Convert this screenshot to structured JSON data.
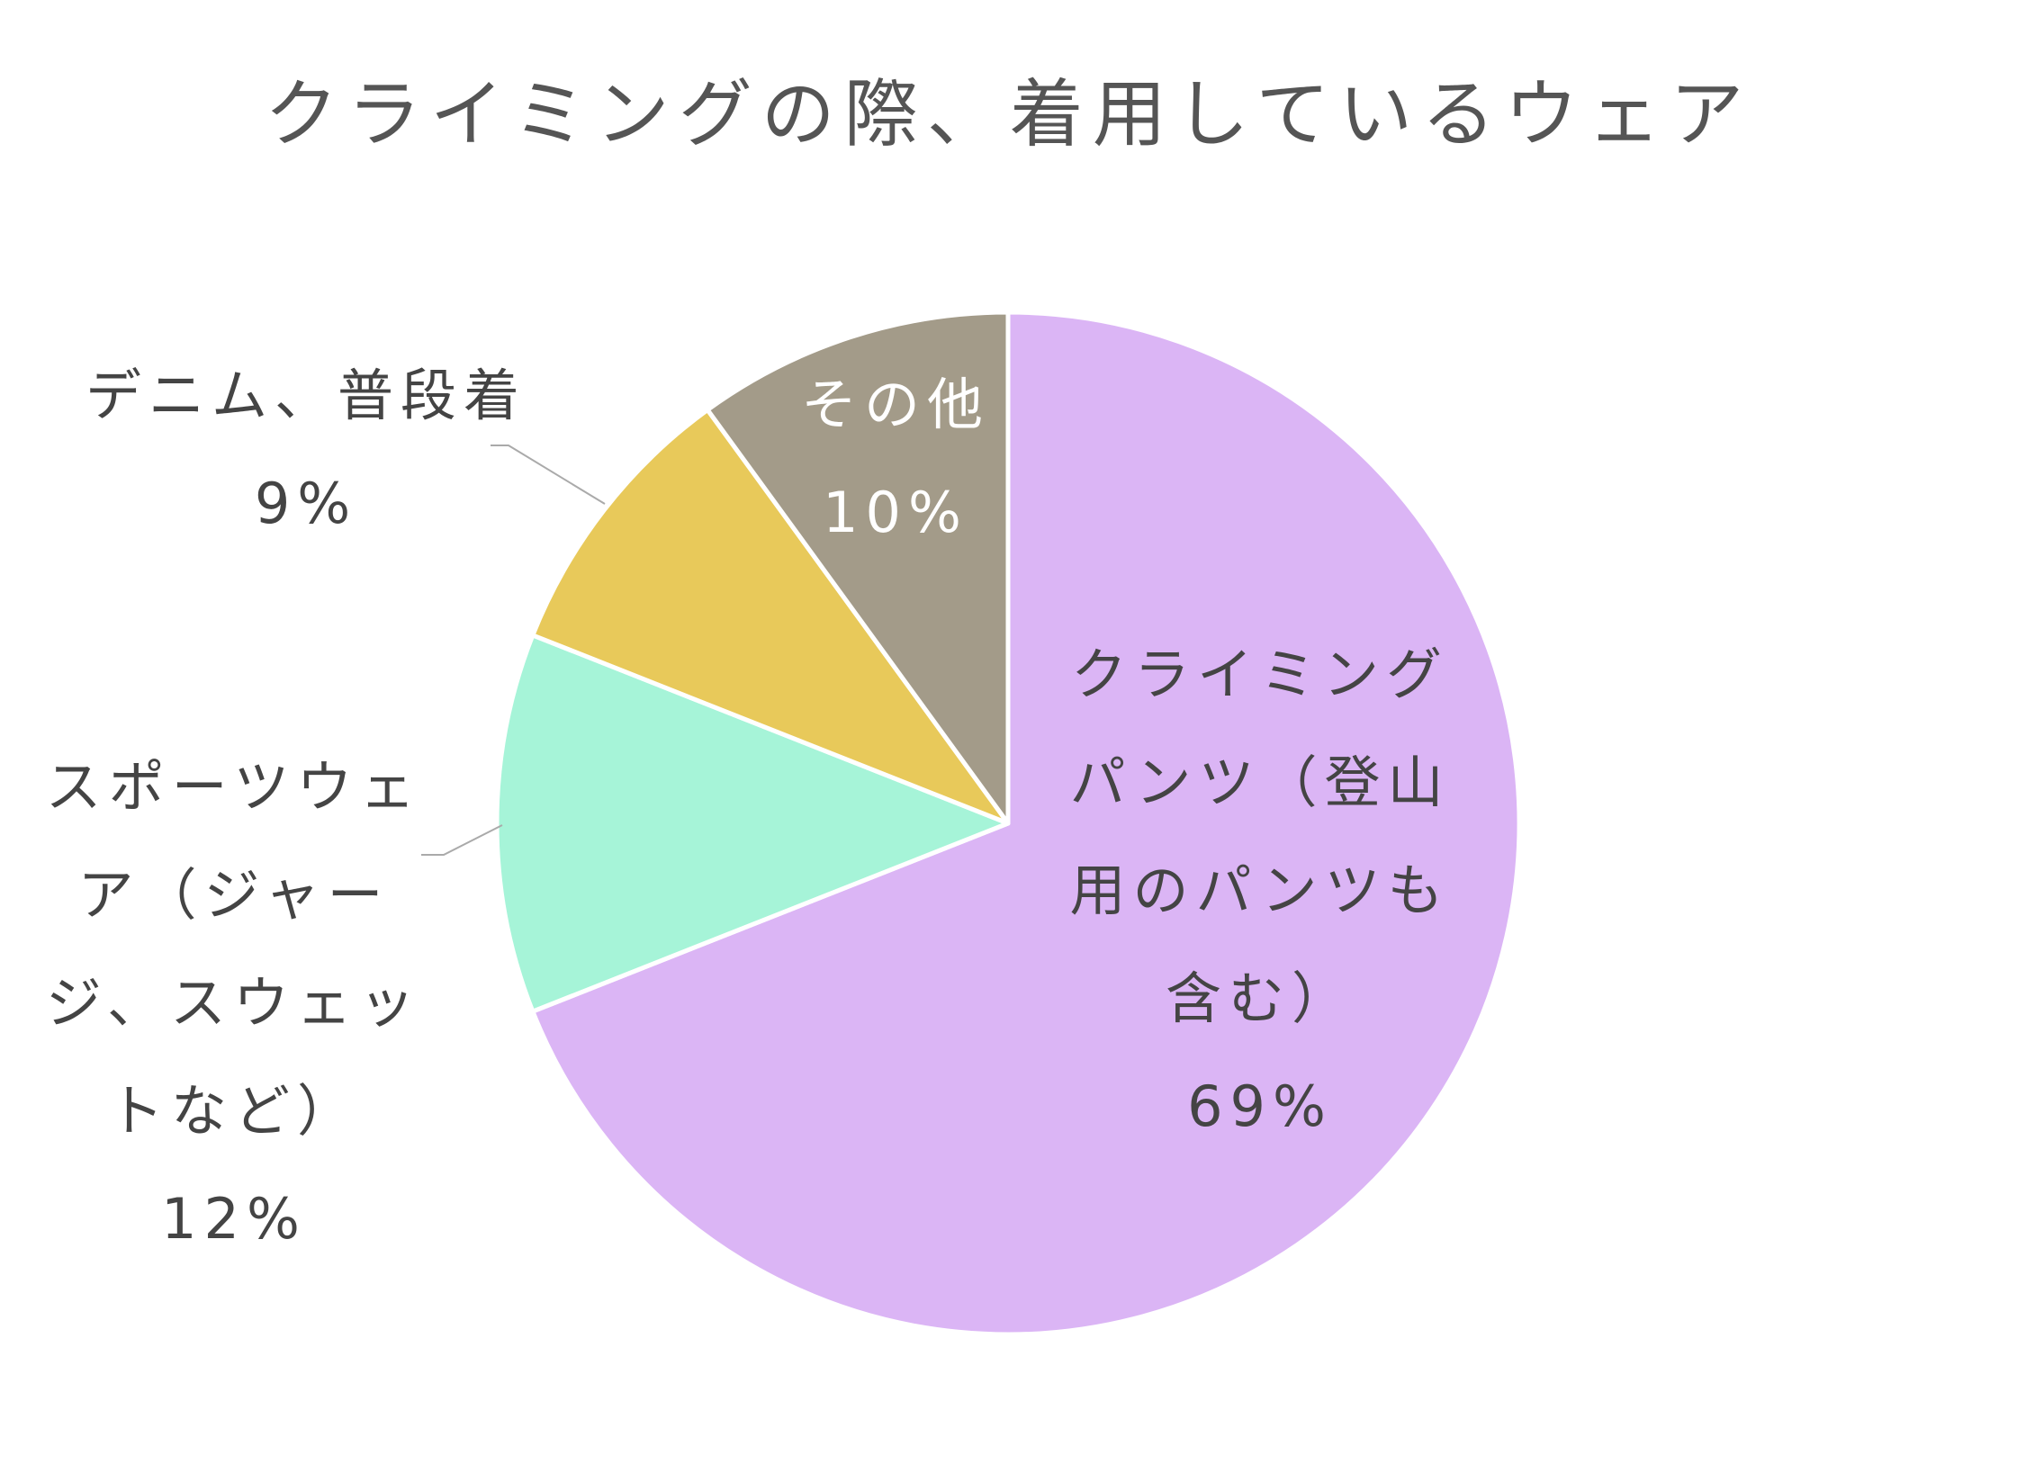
{
  "chart_data": {
    "type": "pie",
    "title": "クライミングの際、着用しているウェア",
    "slices": [
      {
        "id": "climbing-pants",
        "label_lines": [
          "クライミング",
          "パンツ（登山",
          "用のパンツも",
          "含む）"
        ],
        "value": 69,
        "value_label": "69%",
        "color": "#dbb5f5",
        "label_color": "#444444"
      },
      {
        "id": "sportswear",
        "label_lines": [
          "スポーツウェ",
          "ア（ジャー",
          "ジ、スウェッ",
          "トなど）"
        ],
        "value": 12,
        "value_label": "12%",
        "color": "#a6f4d8",
        "label_color": "#444444"
      },
      {
        "id": "denim",
        "label_lines": [
          "デニム、普段着"
        ],
        "value": 9,
        "value_label": "9%",
        "color": "#e8c95a",
        "label_color": "#444444"
      },
      {
        "id": "other",
        "label_lines": [
          "その他"
        ],
        "value": 10,
        "value_label": "10%",
        "color": "#a39b89",
        "label_color": "#ffffff"
      }
    ],
    "start_angle": "12 o'clock",
    "direction": "clockwise",
    "legend": "none",
    "grid": false,
    "slice_border_color": "#ffffff",
    "leader_line_color": "#aaaaaa"
  }
}
